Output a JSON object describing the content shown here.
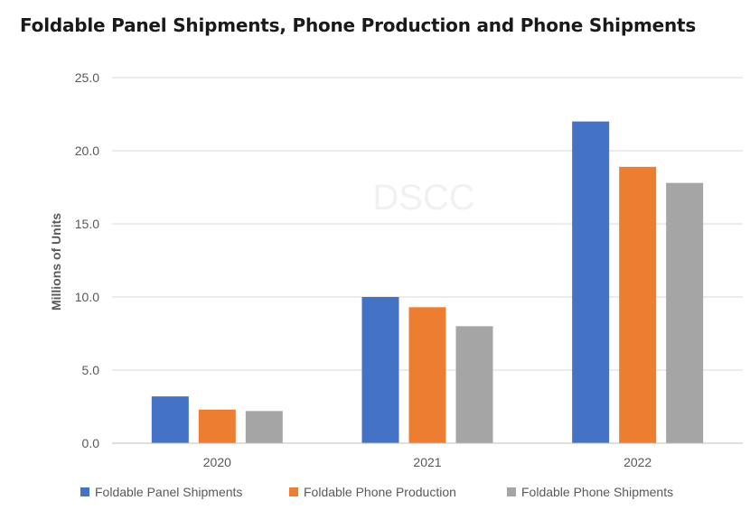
{
  "chart_data": {
    "type": "bar",
    "title": "Foldable Panel Shipments, Phone Production and Phone Shipments",
    "xlabel": "",
    "ylabel": "Millions of Units",
    "ylim": [
      0,
      25
    ],
    "yticks": [
      "0.0",
      "5.0",
      "10.0",
      "15.0",
      "20.0",
      "25.0"
    ],
    "categories": [
      "2020",
      "2021",
      "2022"
    ],
    "series": [
      {
        "name": "Foldable Panel Shipments",
        "color": "#4472C4",
        "values": [
          3.2,
          10.0,
          22.0
        ]
      },
      {
        "name": "Foldable Phone Production",
        "color": "#ED7D31",
        "values": [
          2.3,
          9.3,
          18.9
        ]
      },
      {
        "name": "Foldable Phone Shipments",
        "color": "#A5A5A5",
        "values": [
          2.2,
          8.0,
          17.8
        ]
      }
    ],
    "grid": true,
    "legend": "bottom",
    "watermark": "DSCC"
  }
}
